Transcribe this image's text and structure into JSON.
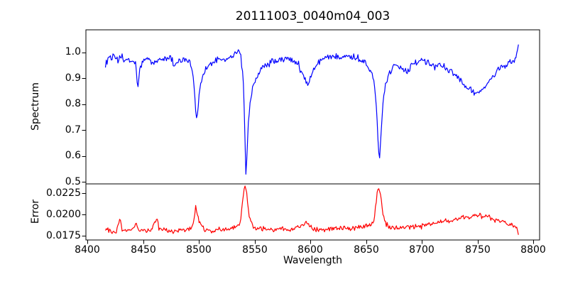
{
  "chart_data": {
    "type": "line",
    "title": "20111003_0040m04_003",
    "xlabel": "Wavelength",
    "x_ticks": [
      "8400",
      "8450",
      "8500",
      "8550",
      "8600",
      "8650",
      "8700",
      "8750",
      "8800"
    ],
    "x_tick_values": [
      8400,
      8450,
      8500,
      8550,
      8600,
      8650,
      8700,
      8750,
      8800
    ],
    "xlim": [
      8398.5,
      8805.5
    ],
    "x_range_of_data": [
      8416,
      8787
    ],
    "sample_step": 0.75,
    "frame_color": "#000000",
    "subplots": [
      {
        "name": "spectrum",
        "ylabel": "Spectrum",
        "ylim": [
          0.4925,
          1.087
        ],
        "y_ticks": [
          "1.0",
          "0.9",
          "0.8",
          "0.7",
          "0.6",
          "0.5"
        ],
        "y_tick_values": [
          1.0,
          0.9,
          0.8,
          0.7,
          0.6,
          0.5
        ],
        "line_color": "#0000ff",
        "noise_amplitude": 0.016,
        "noise_seed": 1234,
        "anchors": [
          [
            8416,
            0.945
          ],
          [
            8419,
            0.99
          ],
          [
            8421,
            0.975
          ],
          [
            8424,
            0.985
          ],
          [
            8427,
            0.965
          ],
          [
            8430,
            0.985
          ],
          [
            8433,
            0.97
          ],
          [
            8436,
            0.975
          ],
          [
            8440,
            0.96
          ],
          [
            8443,
            0.955
          ],
          [
            8445,
            0.865
          ],
          [
            8447,
            0.94
          ],
          [
            8450,
            0.965
          ],
          [
            8455,
            0.975
          ],
          [
            8458,
            0.96
          ],
          [
            8462,
            0.965
          ],
          [
            8466,
            0.975
          ],
          [
            8470,
            0.975
          ],
          [
            8474,
            0.985
          ],
          [
            8478,
            0.95
          ],
          [
            8482,
            0.965
          ],
          [
            8486,
            0.975
          ],
          [
            8490,
            0.965
          ],
          [
            8493,
            0.955
          ],
          [
            8495,
            0.9
          ],
          [
            8497,
            0.78
          ],
          [
            8498,
            0.735
          ],
          [
            8499,
            0.78
          ],
          [
            8501,
            0.875
          ],
          [
            8503,
            0.9
          ],
          [
            8506,
            0.93
          ],
          [
            8510,
            0.955
          ],
          [
            8514,
            0.965
          ],
          [
            8518,
            0.975
          ],
          [
            8522,
            0.97
          ],
          [
            8526,
            0.975
          ],
          [
            8530,
            0.985
          ],
          [
            8533,
            1.0
          ],
          [
            8535,
            1.01
          ],
          [
            8537,
            0.995
          ],
          [
            8539,
            0.93
          ],
          [
            8540,
            0.86
          ],
          [
            8541,
            0.7
          ],
          [
            8542,
            0.53
          ],
          [
            8543,
            0.6
          ],
          [
            8544,
            0.72
          ],
          [
            8546,
            0.82
          ],
          [
            8548,
            0.86
          ],
          [
            8551,
            0.9
          ],
          [
            8554,
            0.925
          ],
          [
            8558,
            0.945
          ],
          [
            8562,
            0.955
          ],
          [
            8566,
            0.965
          ],
          [
            8570,
            0.965
          ],
          [
            8574,
            0.97
          ],
          [
            8578,
            0.975
          ],
          [
            8582,
            0.975
          ],
          [
            8586,
            0.97
          ],
          [
            8589,
            0.955
          ],
          [
            8592,
            0.92
          ],
          [
            8595,
            0.9
          ],
          [
            8597,
            0.875
          ],
          [
            8599,
            0.89
          ],
          [
            8601,
            0.915
          ],
          [
            8604,
            0.945
          ],
          [
            8608,
            0.965
          ],
          [
            8612,
            0.975
          ],
          [
            8616,
            0.98
          ],
          [
            8620,
            0.985
          ],
          [
            8624,
            0.99
          ],
          [
            8628,
            0.985
          ],
          [
            8632,
            0.99
          ],
          [
            8636,
            0.985
          ],
          [
            8640,
            0.98
          ],
          [
            8644,
            0.975
          ],
          [
            8648,
            0.965
          ],
          [
            8652,
            0.945
          ],
          [
            8655,
            0.925
          ],
          [
            8657,
            0.89
          ],
          [
            8659,
            0.8
          ],
          [
            8661,
            0.62
          ],
          [
            8662,
            0.595
          ],
          [
            8663,
            0.67
          ],
          [
            8665,
            0.8
          ],
          [
            8667,
            0.87
          ],
          [
            8670,
            0.91
          ],
          [
            8674,
            0.945
          ],
          [
            8678,
            0.955
          ],
          [
            8682,
            0.945
          ],
          [
            8686,
            0.925
          ],
          [
            8688,
            0.935
          ],
          [
            8692,
            0.96
          ],
          [
            8696,
            0.965
          ],
          [
            8700,
            0.97
          ],
          [
            8704,
            0.965
          ],
          [
            8708,
            0.955
          ],
          [
            8712,
            0.945
          ],
          [
            8716,
            0.95
          ],
          [
            8720,
            0.945
          ],
          [
            8724,
            0.93
          ],
          [
            8728,
            0.915
          ],
          [
            8732,
            0.9
          ],
          [
            8736,
            0.885
          ],
          [
            8740,
            0.865
          ],
          [
            8744,
            0.855
          ],
          [
            8747,
            0.845
          ],
          [
            8750,
            0.835
          ],
          [
            8753,
            0.85
          ],
          [
            8756,
            0.865
          ],
          [
            8760,
            0.885
          ],
          [
            8764,
            0.91
          ],
          [
            8768,
            0.93
          ],
          [
            8772,
            0.945
          ],
          [
            8776,
            0.955
          ],
          [
            8780,
            0.96
          ],
          [
            8783,
            0.97
          ],
          [
            8785,
            0.985
          ],
          [
            8786,
            1.01
          ],
          [
            8787,
            1.055
          ]
        ],
        "absorption_lines": [
          {
            "wavelength": 8445,
            "depth": 0.87
          },
          {
            "wavelength": 8498,
            "depth": 0.73
          },
          {
            "wavelength": 8542,
            "depth": 0.52
          },
          {
            "wavelength": 8598,
            "depth": 0.87
          },
          {
            "wavelength": 8662,
            "depth": 0.59
          },
          {
            "wavelength": 8750,
            "depth": 0.83
          }
        ]
      },
      {
        "name": "error",
        "ylabel": "Error",
        "ylim": [
          0.017,
          0.023583
        ],
        "y_ticks": [
          "0.0225",
          "0.0200",
          "0.0175"
        ],
        "y_tick_values": [
          0.0225,
          0.02,
          0.0175
        ],
        "line_color": "#ff0000",
        "noise_amplitude": 0.00035,
        "noise_seed": 77,
        "anchors": [
          [
            8416,
            0.0183
          ],
          [
            8420,
            0.0181
          ],
          [
            8423,
            0.018
          ],
          [
            8426,
            0.0181
          ],
          [
            8429,
            0.0196
          ],
          [
            8431,
            0.0182
          ],
          [
            8435,
            0.0181
          ],
          [
            8438,
            0.0182
          ],
          [
            8441,
            0.0183
          ],
          [
            8444,
            0.0191
          ],
          [
            8446,
            0.0182
          ],
          [
            8450,
            0.0181
          ],
          [
            8454,
            0.0182
          ],
          [
            8458,
            0.0183
          ],
          [
            8462,
            0.0197
          ],
          [
            8464,
            0.0184
          ],
          [
            8468,
            0.0182
          ],
          [
            8472,
            0.0181
          ],
          [
            8476,
            0.0178
          ],
          [
            8480,
            0.0181
          ],
          [
            8484,
            0.0182
          ],
          [
            8488,
            0.0182
          ],
          [
            8492,
            0.0184
          ],
          [
            8495,
            0.019
          ],
          [
            8497,
            0.0208
          ],
          [
            8499,
            0.0196
          ],
          [
            8502,
            0.0186
          ],
          [
            8506,
            0.0182
          ],
          [
            8510,
            0.0181
          ],
          [
            8514,
            0.018
          ],
          [
            8518,
            0.0182
          ],
          [
            8522,
            0.0182
          ],
          [
            8526,
            0.0183
          ],
          [
            8530,
            0.0184
          ],
          [
            8534,
            0.0186
          ],
          [
            8537,
            0.019
          ],
          [
            8540,
            0.0225
          ],
          [
            8541,
            0.0232
          ],
          [
            8543,
            0.0222
          ],
          [
            8545,
            0.0196
          ],
          [
            8548,
            0.0186
          ],
          [
            8551,
            0.0184
          ],
          [
            8554,
            0.0186
          ],
          [
            8557,
            0.0183
          ],
          [
            8561,
            0.0182
          ],
          [
            8565,
            0.0183
          ],
          [
            8569,
            0.0182
          ],
          [
            8573,
            0.0183
          ],
          [
            8577,
            0.0182
          ],
          [
            8581,
            0.0183
          ],
          [
            8585,
            0.0183
          ],
          [
            8589,
            0.0185
          ],
          [
            8593,
            0.0186
          ],
          [
            8596,
            0.0191
          ],
          [
            8599,
            0.0186
          ],
          [
            8603,
            0.0183
          ],
          [
            8607,
            0.0182
          ],
          [
            8611,
            0.0183
          ],
          [
            8615,
            0.0183
          ],
          [
            8619,
            0.0184
          ],
          [
            8623,
            0.0183
          ],
          [
            8627,
            0.0184
          ],
          [
            8631,
            0.0183
          ],
          [
            8635,
            0.0184
          ],
          [
            8639,
            0.0184
          ],
          [
            8643,
            0.0185
          ],
          [
            8647,
            0.0185
          ],
          [
            8651,
            0.0186
          ],
          [
            8654,
            0.0188
          ],
          [
            8657,
            0.0192
          ],
          [
            8660,
            0.0229
          ],
          [
            8661,
            0.0231
          ],
          [
            8663,
            0.0224
          ],
          [
            8665,
            0.02
          ],
          [
            8668,
            0.0188
          ],
          [
            8671,
            0.0185
          ],
          [
            8675,
            0.0184
          ],
          [
            8679,
            0.0185
          ],
          [
            8683,
            0.0185
          ],
          [
            8687,
            0.0186
          ],
          [
            8691,
            0.0185
          ],
          [
            8695,
            0.0186
          ],
          [
            8699,
            0.0186
          ],
          [
            8703,
            0.0187
          ],
          [
            8707,
            0.0188
          ],
          [
            8711,
            0.0189
          ],
          [
            8715,
            0.019
          ],
          [
            8719,
            0.0191
          ],
          [
            8723,
            0.0192
          ],
          [
            8727,
            0.0193
          ],
          [
            8731,
            0.0194
          ],
          [
            8735,
            0.0196
          ],
          [
            8739,
            0.0198
          ],
          [
            8743,
            0.0196
          ],
          [
            8747,
            0.02
          ],
          [
            8751,
            0.0199
          ],
          [
            8755,
            0.0197
          ],
          [
            8759,
            0.0199
          ],
          [
            8763,
            0.0194
          ],
          [
            8767,
            0.0192
          ],
          [
            8771,
            0.0191
          ],
          [
            8775,
            0.019
          ],
          [
            8779,
            0.0188
          ],
          [
            8782,
            0.0186
          ],
          [
            8785,
            0.0184
          ],
          [
            8787,
            0.0176
          ]
        ]
      }
    ]
  }
}
